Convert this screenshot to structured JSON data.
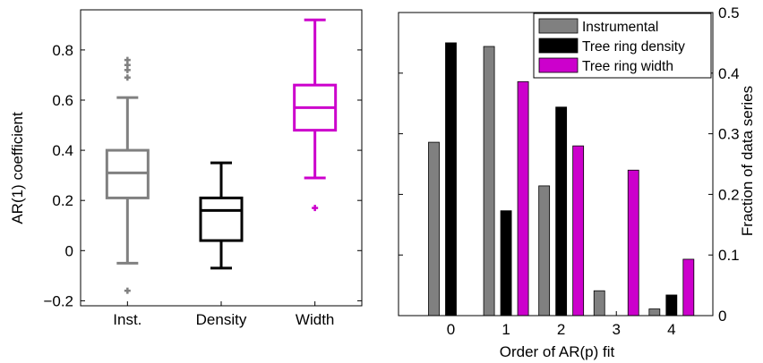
{
  "chart_data": [
    {
      "type": "box",
      "ylabel": "AR(1) coefficient",
      "ylim": [
        -0.22,
        0.96
      ],
      "yticks": [
        -0.2,
        0,
        0.2,
        0.4,
        0.6,
        0.8
      ],
      "ytick_labels": [
        "−0.2",
        "0",
        "0.2",
        "0.4",
        "0.6",
        "0.8"
      ],
      "categories": [
        "Inst.",
        "Density",
        "Width"
      ],
      "boxes": [
        {
          "name": "Inst.",
          "color": "#808080",
          "whisker_low": -0.05,
          "q1": 0.21,
          "median": 0.31,
          "q3": 0.4,
          "whisker_high": 0.61,
          "outliers": [
            -0.16,
            0.69,
            0.72,
            0.74,
            0.76
          ]
        },
        {
          "name": "Density",
          "color": "#000000",
          "whisker_low": -0.07,
          "q1": 0.04,
          "median": 0.16,
          "q3": 0.21,
          "whisker_high": 0.35,
          "outliers": []
        },
        {
          "name": "Width",
          "color": "#cc00cc",
          "whisker_low": 0.29,
          "q1": 0.48,
          "median": 0.57,
          "q3": 0.66,
          "whisker_high": 0.92,
          "outliers": [
            0.17
          ]
        }
      ]
    },
    {
      "type": "bar",
      "xlabel": "Order of AR(p) fit",
      "ylabel": "Fraction of data series",
      "categories": [
        "0",
        "1",
        "2",
        "3",
        "4"
      ],
      "ylim": [
        0,
        0.5
      ],
      "yticks": [
        0,
        0.1,
        0.2,
        0.3,
        0.4,
        0.5
      ],
      "ytick_labels": [
        "0",
        "0.1",
        "0.2",
        "0.3",
        "0.4",
        "0.5"
      ],
      "legend": "top-right",
      "series": [
        {
          "name": "Instrumental",
          "color": "#808080",
          "values": [
            0.286,
            0.444,
            0.214,
            0.041,
            0.011
          ]
        },
        {
          "name": "Tree ring density",
          "color": "#000000",
          "values": [
            0.45,
            0.173,
            0.344,
            0.0,
            0.034
          ]
        },
        {
          "name": "Tree ring width",
          "color": "#cc00cc",
          "values": [
            0.0,
            0.386,
            0.28,
            0.24,
            0.093
          ]
        }
      ]
    }
  ]
}
